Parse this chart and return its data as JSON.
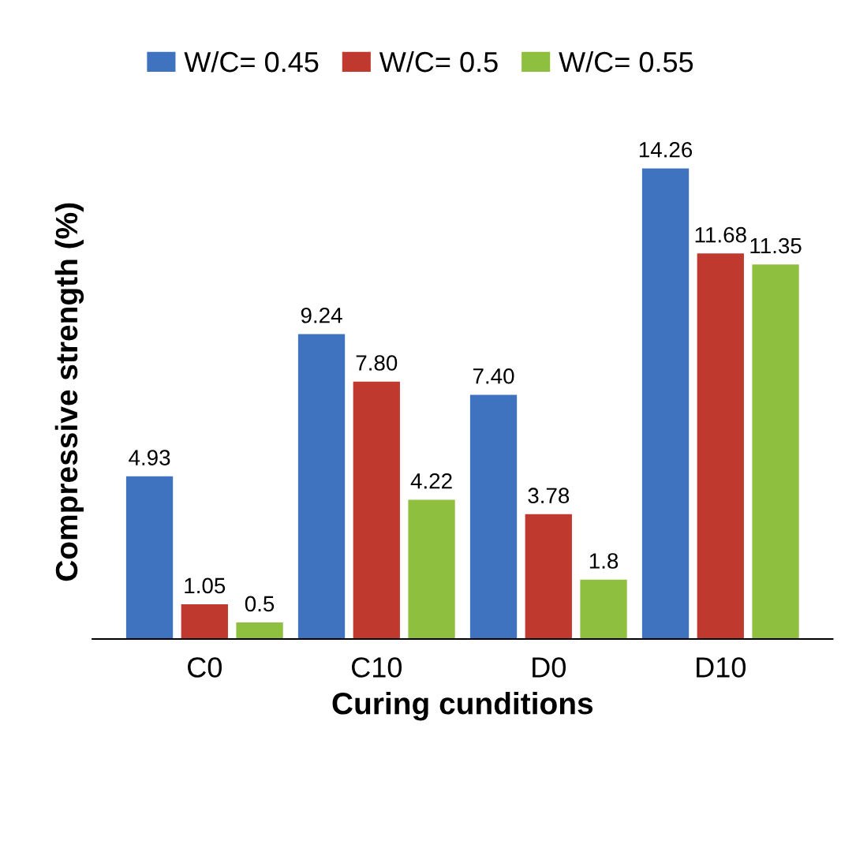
{
  "chart_data": {
    "type": "bar",
    "xlabel": "Curing cunditions",
    "ylabel": "Compressive strength (%)",
    "categories": [
      "C0",
      "C10",
      "D0",
      "D10"
    ],
    "series": [
      {
        "name": "W/C= 0.45",
        "color": "#3f73c0",
        "values": [
          4.93,
          9.24,
          7.4,
          14.26
        ],
        "value_labels": [
          "4.93",
          "9.24",
          "7.40",
          "14.26"
        ]
      },
      {
        "name": "W/C= 0.5",
        "color": "#c0392f",
        "values": [
          1.05,
          7.8,
          3.78,
          11.68
        ],
        "value_labels": [
          "1.05",
          "7.80",
          "3.78",
          "11.68"
        ]
      },
      {
        "name": "W/C= 0.55",
        "color": "#8fbf3f",
        "values": [
          0.5,
          4.22,
          1.8,
          11.35
        ],
        "value_labels": [
          "0.5",
          "4.22",
          "1.8",
          "11.35"
        ]
      }
    ],
    "grid": false,
    "legend": "top"
  }
}
